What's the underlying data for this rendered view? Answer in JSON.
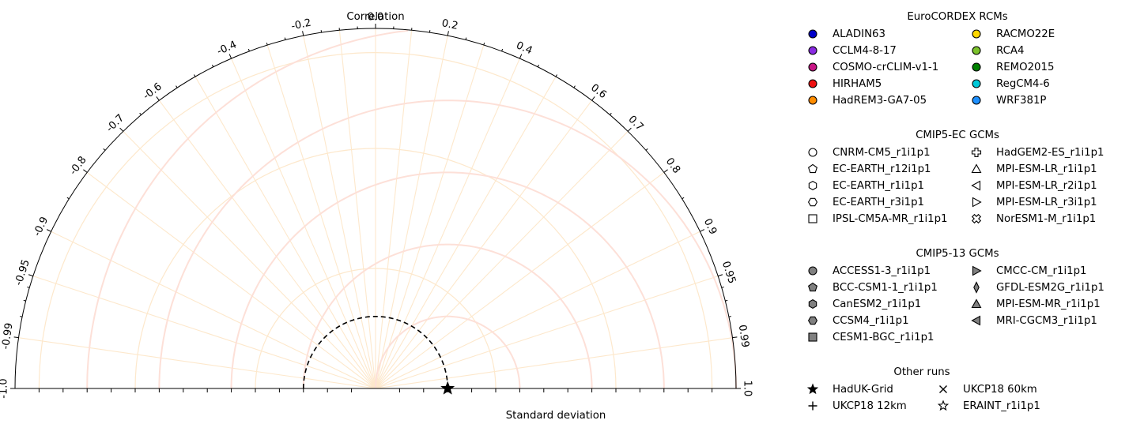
{
  "chart_data": {
    "type": "taylor-diagram",
    "correlation_label": "Correlation",
    "std_label": "Standard deviation",
    "correlation_ticks": [
      "-1.0",
      "-0.99",
      "-0.95",
      "-0.9",
      "-0.8",
      "-0.7",
      "-0.6",
      "-0.4",
      "-0.2",
      "0.0",
      "0.2",
      "0.4",
      "0.6",
      "0.7",
      "0.8",
      "0.9",
      "0.95",
      "0.99",
      "1.0"
    ],
    "std_range": [
      0,
      1.5
    ],
    "reference_std": 0.3,
    "reference_label": "HadUK-Grid",
    "rms_contours": [
      0.3,
      0.6,
      0.9,
      1.2,
      1.5
    ],
    "std_contours": [
      0.5,
      1.0,
      1.4
    ],
    "grid": true,
    "points": [
      {
        "name": "HadUK-Grid",
        "correlation": 1.0,
        "std": 0.3
      }
    ],
    "legend_placement": "right",
    "legend_groups": [
      {
        "title": "EuroCORDEX RCMs",
        "columns": [
          [
            {
              "label": "ALADIN63",
              "marker": "circle",
              "color": "#0000c8"
            },
            {
              "label": "CCLM4-8-17",
              "marker": "circle",
              "color": "#8a2be2"
            },
            {
              "label": "COSMO-crCLIM-v1-1",
              "marker": "circle",
              "color": "#c71585"
            },
            {
              "label": "HIRHAM5",
              "marker": "circle",
              "color": "#ee1111"
            },
            {
              "label": "HadREM3-GA7-05",
              "marker": "circle",
              "color": "#ff8c00"
            }
          ],
          [
            {
              "label": "RACMO22E",
              "marker": "circle",
              "color": "#ffd700"
            },
            {
              "label": "RCA4",
              "marker": "circle",
              "color": "#7cc32c"
            },
            {
              "label": "REMO2015",
              "marker": "circle",
              "color": "#008000"
            },
            {
              "label": "RegCM4-6",
              "marker": "circle",
              "color": "#00c8d8"
            },
            {
              "label": "WRF381P",
              "marker": "circle",
              "color": "#1e90ff"
            }
          ]
        ]
      },
      {
        "title": "CMIP5-EC GCMs",
        "columns": [
          [
            {
              "label": "CNRM-CM5_r1i1p1",
              "marker": "circle-open",
              "color": "#ffffff"
            },
            {
              "label": "EC-EARTH_r12i1p1",
              "marker": "pentagon-open",
              "color": "#ffffff"
            },
            {
              "label": "EC-EARTH_r1i1p1",
              "marker": "hexagon-open",
              "color": "#ffffff"
            },
            {
              "label": "EC-EARTH_r3i1p1",
              "marker": "hexagon2-open",
              "color": "#ffffff"
            },
            {
              "label": "IPSL-CM5A-MR_r1i1p1",
              "marker": "square-open",
              "color": "#ffffff"
            }
          ],
          [
            {
              "label": "HadGEM2-ES_r1i1p1",
              "marker": "plus-filled-open",
              "color": "#ffffff"
            },
            {
              "label": "MPI-ESM-LR_r1i1p1",
              "marker": "triangle-up-open",
              "color": "#ffffff"
            },
            {
              "label": "MPI-ESM-LR_r2i1p1",
              "marker": "triangle-left-open",
              "color": "#ffffff"
            },
            {
              "label": "MPI-ESM-LR_r3i1p1",
              "marker": "triangle-right-open",
              "color": "#ffffff"
            },
            {
              "label": "NorESM1-M_r1i1p1",
              "marker": "x-filled-open",
              "color": "#ffffff"
            }
          ]
        ]
      },
      {
        "title": "CMIP5-13 GCMs",
        "columns": [
          [
            {
              "label": "ACCESS1-3_r1i1p1",
              "marker": "circle",
              "color": "#808080"
            },
            {
              "label": "BCC-CSM1-1_r1i1p1",
              "marker": "pentagon",
              "color": "#808080"
            },
            {
              "label": "CanESM2_r1i1p1",
              "marker": "hexagon",
              "color": "#808080"
            },
            {
              "label": "CCSM4_r1i1p1",
              "marker": "hexagon2",
              "color": "#808080"
            },
            {
              "label": "CESM1-BGC_r1i1p1",
              "marker": "square",
              "color": "#808080"
            }
          ],
          [
            {
              "label": "CMCC-CM_r1i1p1",
              "marker": "triangle-right",
              "color": "#808080"
            },
            {
              "label": "GFDL-ESM2G_r1i1p1",
              "marker": "thin-diamond",
              "color": "#808080"
            },
            {
              "label": "MPI-ESM-MR_r1i1p1",
              "marker": "triangle-up",
              "color": "#808080"
            },
            {
              "label": "MRI-CGCM3_r1i1p1",
              "marker": "triangle-left",
              "color": "#808080"
            }
          ]
        ]
      },
      {
        "title": "Other runs",
        "columns": [
          [
            {
              "label": "HadUK-Grid",
              "marker": "star",
              "color": "#000000"
            },
            {
              "label": "UKCP18 12km",
              "marker": "plus",
              "color": "#000000"
            }
          ],
          [
            {
              "label": "UKCP18 60km",
              "marker": "x",
              "color": "#000000"
            },
            {
              "label": "ERAINT_r1i1p1",
              "marker": "star-open",
              "color": "#ffffff"
            }
          ]
        ]
      }
    ],
    "colors": {
      "corr_grid": "#fde8cc",
      "std_grid": "#fde0d8",
      "reference_line": "#000000"
    }
  }
}
